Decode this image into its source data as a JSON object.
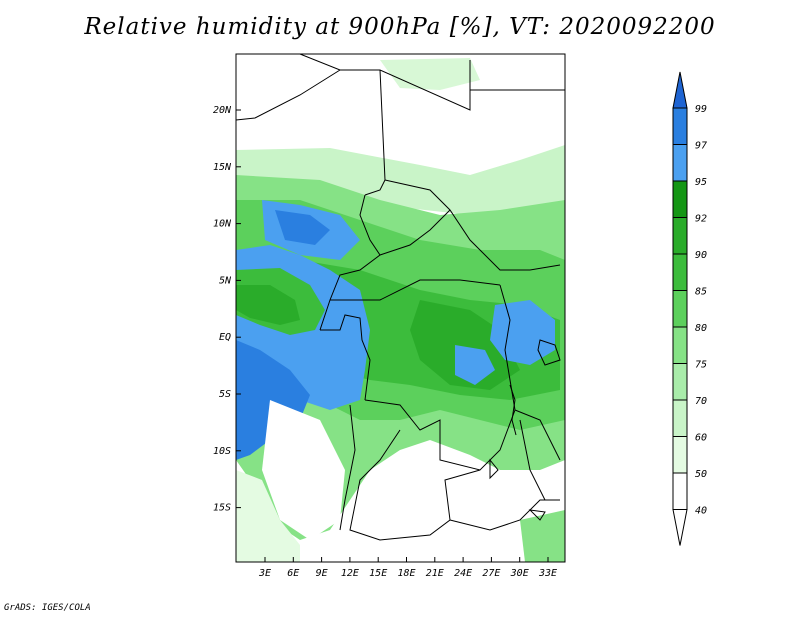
{
  "title": "Relative humidity at 900hPa [%], VT: 2020092200",
  "footer": "GrADS: IGES/COLA",
  "map": {
    "lat_labels": [
      "20N",
      "15N",
      "10N",
      "5N",
      "EQ",
      "5S",
      "10S",
      "15S"
    ],
    "lon_labels": [
      "3E",
      "6E",
      "9E",
      "12E",
      "15E",
      "18E",
      "21E",
      "24E",
      "27E",
      "30E",
      "33E"
    ]
  },
  "colorbar": {
    "levels": [
      "99",
      "97",
      "95",
      "92",
      "90",
      "85",
      "80",
      "75",
      "70",
      "60",
      "50",
      "40"
    ],
    "colors": [
      "#1e64d2",
      "#2a7fe0",
      "#4ba0f0",
      "#149614",
      "#2aac2a",
      "#3cbc3c",
      "#5cd05c",
      "#86e286",
      "#a9ecaa",
      "#c9f4c8",
      "#e4fbe2",
      "#ffffff"
    ]
  }
}
